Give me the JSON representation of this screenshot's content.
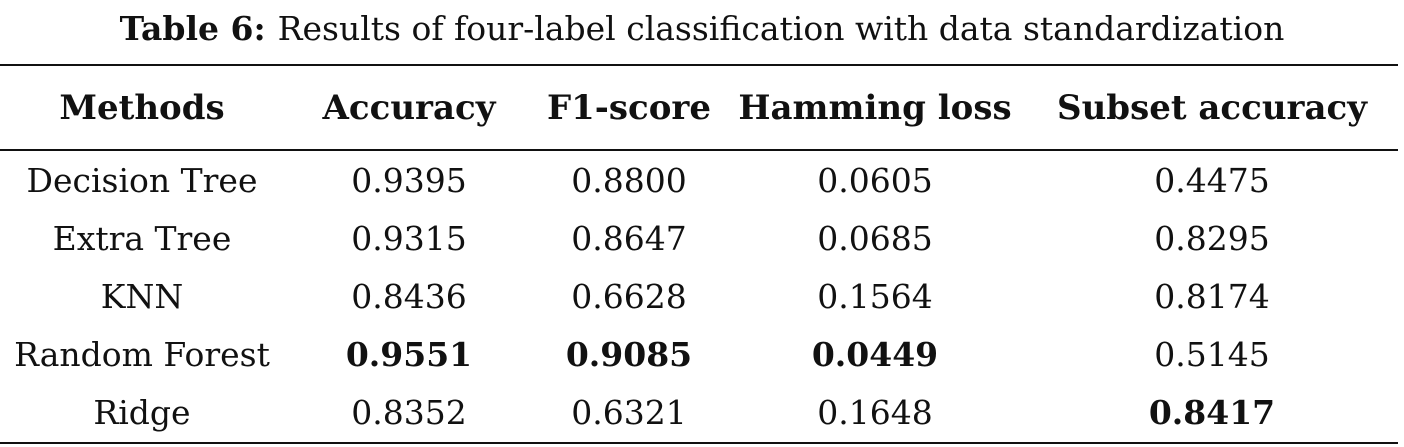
{
  "caption": {
    "label": "Table 6:",
    "text": "Results of four-label classification with data standardization"
  },
  "table": {
    "headers": [
      "Methods",
      "Accuracy",
      "F1-score",
      "Hamming loss",
      "Subset accuracy"
    ],
    "rows": [
      {
        "method": "Decision Tree",
        "accuracy": "0.9395",
        "f1_score": "0.8800",
        "hamming_loss": "0.0605",
        "subset_accuracy": "0.4475",
        "bold": []
      },
      {
        "method": "Extra Tree",
        "accuracy": "0.9315",
        "f1_score": "0.8647",
        "hamming_loss": "0.0685",
        "subset_accuracy": "0.8295",
        "bold": []
      },
      {
        "method": "KNN",
        "accuracy": "0.8436",
        "f1_score": "0.6628",
        "hamming_loss": "0.1564",
        "subset_accuracy": "0.8174",
        "bold": []
      },
      {
        "method": "Random Forest",
        "accuracy": "0.9551",
        "f1_score": "0.9085",
        "hamming_loss": "0.0449",
        "subset_accuracy": "0.5145",
        "bold": [
          "accuracy",
          "f1_score",
          "hamming_loss"
        ]
      },
      {
        "method": "Ridge",
        "accuracy": "0.8352",
        "f1_score": "0.6321",
        "hamming_loss": "0.1648",
        "subset_accuracy": "0.8417",
        "bold": [
          "subset_accuracy"
        ]
      }
    ]
  }
}
